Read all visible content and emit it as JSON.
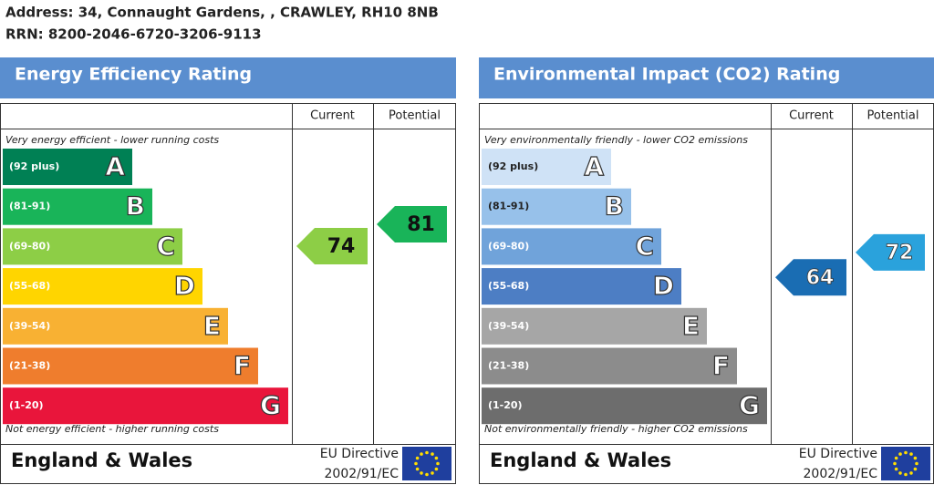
{
  "address": "Address: 34, Connaught Gardens, , CRAWLEY, RH10 8NB",
  "rrn": "RRN: 8200-2046-6720-3206-9113",
  "panels": [
    {
      "title": "Energy Efficiency Rating",
      "current_label": "Current",
      "potential_label": "Potential",
      "top_note": "Very energy efficient - lower running costs",
      "bottom_note": "Not energy efficient - higher running costs",
      "bands": [
        {
          "range": "(92 plus)",
          "letter": "A",
          "color": "#008054"
        },
        {
          "range": "(81-91)",
          "letter": "B",
          "color": "#19b459"
        },
        {
          "range": "(69-80)",
          "letter": "C",
          "color": "#8dce46"
        },
        {
          "range": "(55-68)",
          "letter": "D",
          "color": "#ffd500"
        },
        {
          "range": "(39-54)",
          "letter": "E",
          "color": "#f8b133"
        },
        {
          "range": "(21-38)",
          "letter": "F",
          "color": "#ef7d2d"
        },
        {
          "range": "(1-20)",
          "letter": "G",
          "color": "#e9153b"
        }
      ],
      "current": {
        "value": 74,
        "color": "#8dce46"
      },
      "potential": {
        "value": 81,
        "color": "#19b459"
      },
      "region": "England & Wales",
      "directive": "EU Directive",
      "directive_code": "2002/91/EC"
    },
    {
      "title": "Environmental Impact (CO2) Rating",
      "current_label": "Current",
      "potential_label": "Potential",
      "top_note": "Very environmentally friendly - lower CO2 emissions",
      "bottom_note": "Not environmentally friendly - higher CO2 emissions",
      "bands": [
        {
          "range": "(92 plus)",
          "letter": "A",
          "color": "#cfe2f6"
        },
        {
          "range": "(81-91)",
          "letter": "B",
          "color": "#97c1ea"
        },
        {
          "range": "(69-80)",
          "letter": "C",
          "color": "#70a3da"
        },
        {
          "range": "(55-68)",
          "letter": "D",
          "color": "#4d7ec4"
        },
        {
          "range": "(39-54)",
          "letter": "E",
          "color": "#a6a6a6"
        },
        {
          "range": "(21-38)",
          "letter": "F",
          "color": "#8c8c8c"
        },
        {
          "range": "(1-20)",
          "letter": "G",
          "color": "#6d6d6d"
        }
      ],
      "current": {
        "value": 64,
        "color": "#1a6db3"
      },
      "potential": {
        "value": 72,
        "color": "#2aa2dc"
      },
      "region": "England & Wales",
      "directive": "EU Directive",
      "directive_code": "2002/91/EC"
    }
  ]
}
